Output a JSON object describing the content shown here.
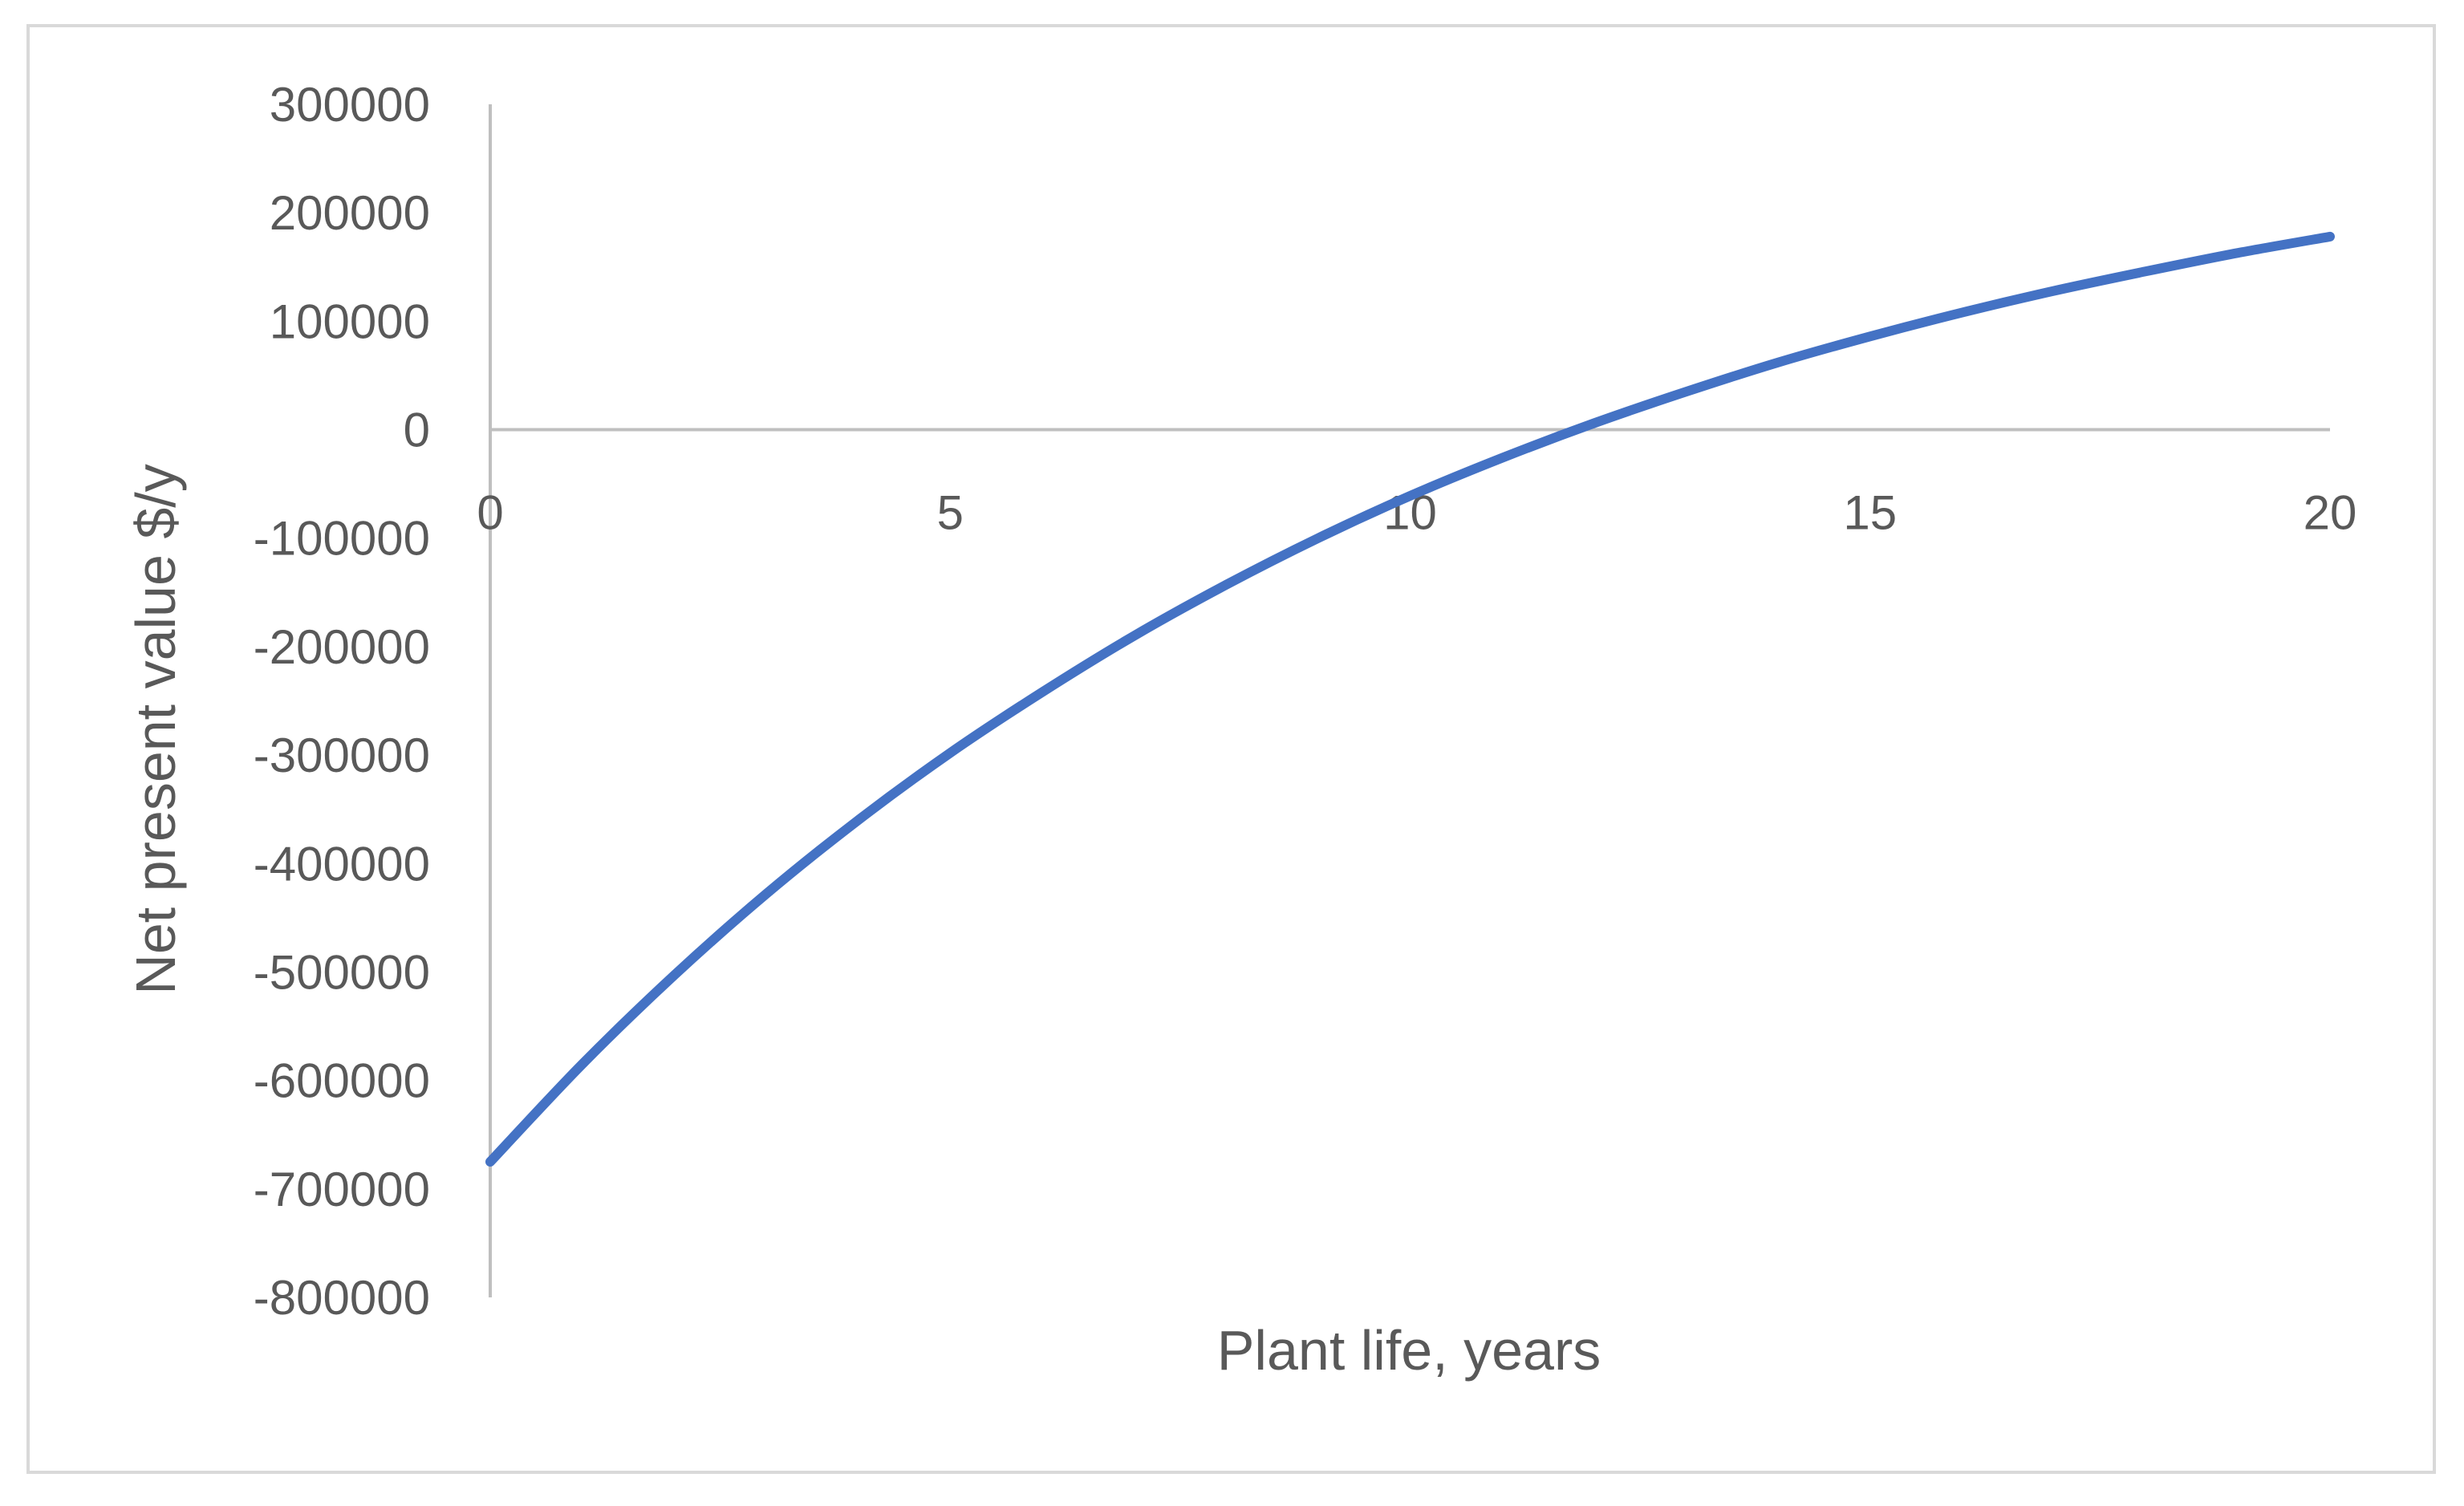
{
  "chart_data": {
    "type": "line",
    "title": "",
    "xlabel": "Plant life, years",
    "ylabel": "Net present value $/y",
    "xlim": [
      0,
      20
    ],
    "ylim": [
      -800000,
      300000
    ],
    "x_ticks": [
      0,
      5,
      10,
      15,
      20
    ],
    "y_ticks": [
      300000,
      200000,
      100000,
      0,
      -100000,
      -200000,
      -300000,
      -400000,
      -500000,
      -600000,
      -700000,
      -800000
    ],
    "grid": false,
    "legend": "none",
    "series": [
      {
        "color": "#4472c4",
        "x": [
          0,
          1,
          2,
          3,
          4,
          5,
          6,
          7,
          8,
          9,
          10,
          11,
          12,
          13,
          14,
          15,
          16,
          17,
          18,
          19,
          20
        ],
        "y": [
          -675000,
          -585000,
          -503000,
          -428000,
          -360000,
          -298000,
          -242000,
          -190000,
          -143000,
          -100000,
          -61000,
          -26000,
          6000,
          35000,
          62000,
          86000,
          108000,
          128000,
          146000,
          163000,
          178000
        ]
      }
    ]
  }
}
